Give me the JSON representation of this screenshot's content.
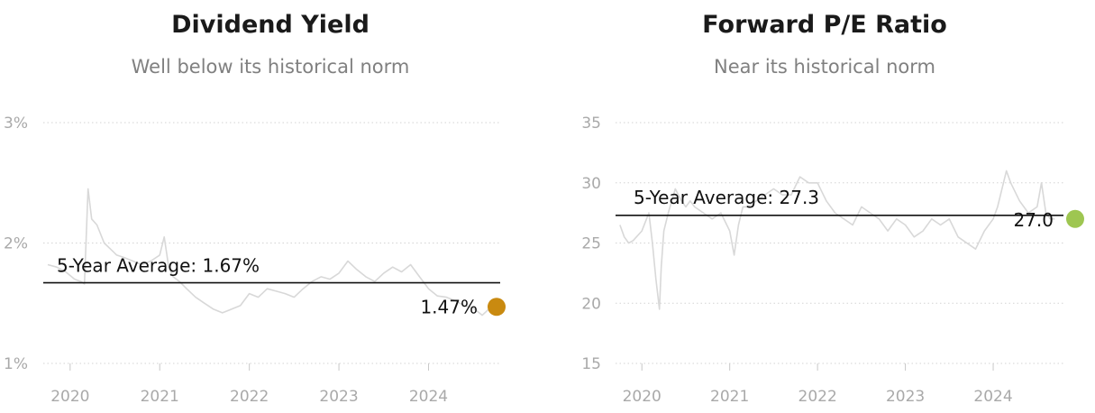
{
  "chart_data": [
    {
      "type": "line",
      "title": "Dividend Yield",
      "subtitle": "Well below its historical norm",
      "ylim": [
        1,
        3
      ],
      "y_ticks": [
        1,
        2,
        3
      ],
      "y_tick_labels": [
        "1%",
        "2%",
        "3%"
      ],
      "x_ticks": [
        2020,
        2021,
        2022,
        2023,
        2024
      ],
      "x_tick_labels": [
        "2020",
        "2021",
        "2022",
        "2023",
        "2024"
      ],
      "xlim": [
        2019.7,
        2024.8
      ],
      "grid": true,
      "average": {
        "value": 1.67,
        "label": "5-Year Average: 1.67%"
      },
      "current": {
        "value": 1.47,
        "label": "1.47%",
        "color": "#c98a10"
      },
      "line_color": "#d8d8d8",
      "series": [
        {
          "x": [
            2019.75,
            2019.85,
            2019.95,
            2020.05,
            2020.12,
            2020.16,
            2020.2,
            2020.24,
            2020.3,
            2020.38,
            2020.45,
            2020.52,
            2020.6,
            2020.7,
            2020.8,
            2020.9,
            2021.0,
            2021.05,
            2021.1,
            2021.15,
            2021.22,
            2021.3,
            2021.4,
            2021.5,
            2021.6,
            2021.7,
            2021.8,
            2021.9,
            2022.0,
            2022.1,
            2022.2,
            2022.3,
            2022.4,
            2022.5,
            2022.6,
            2022.7,
            2022.8,
            2022.9,
            2023.0,
            2023.1,
            2023.2,
            2023.3,
            2023.4,
            2023.5,
            2023.6,
            2023.7,
            2023.8,
            2023.9,
            2024.0,
            2024.1,
            2024.2,
            2024.3,
            2024.4,
            2024.5,
            2024.6,
            2024.7
          ],
          "y": [
            1.82,
            1.8,
            1.76,
            1.7,
            1.68,
            1.66,
            2.45,
            2.2,
            2.15,
            2.0,
            1.95,
            1.9,
            1.88,
            1.85,
            1.82,
            1.85,
            1.9,
            2.05,
            1.8,
            1.72,
            1.68,
            1.62,
            1.55,
            1.5,
            1.45,
            1.42,
            1.45,
            1.48,
            1.58,
            1.55,
            1.62,
            1.6,
            1.58,
            1.55,
            1.62,
            1.68,
            1.72,
            1.7,
            1.75,
            1.85,
            1.78,
            1.72,
            1.68,
            1.75,
            1.8,
            1.76,
            1.82,
            1.72,
            1.62,
            1.56,
            1.55,
            1.52,
            1.48,
            1.46,
            1.4,
            1.47
          ]
        }
      ]
    },
    {
      "type": "line",
      "title": "Forward P/E Ratio",
      "subtitle": "Near its historical norm",
      "ylim": [
        15,
        35
      ],
      "y_ticks": [
        15,
        20,
        25,
        30,
        35
      ],
      "y_tick_labels": [
        "15",
        "20",
        "25",
        "30",
        "35"
      ],
      "x_ticks": [
        2020,
        2021,
        2022,
        2023,
        2024
      ],
      "x_tick_labels": [
        "2020",
        "2021",
        "2022",
        "2023",
        "2024"
      ],
      "xlim": [
        2019.7,
        2024.8
      ],
      "grid": true,
      "average": {
        "value": 27.3,
        "label": "5-Year Average: 27.3"
      },
      "current": {
        "value": 27.0,
        "label": "27.0",
        "color": "#9ec651"
      },
      "line_color": "#d8d8d8",
      "series": [
        {
          "x": [
            2019.75,
            2019.8,
            2019.85,
            2019.9,
            2020.0,
            2020.08,
            2020.12,
            2020.16,
            2020.2,
            2020.22,
            2020.25,
            2020.3,
            2020.38,
            2020.45,
            2020.5,
            2020.55,
            2020.6,
            2020.7,
            2020.8,
            2020.9,
            2021.0,
            2021.05,
            2021.1,
            2021.15,
            2021.2,
            2021.3,
            2021.4,
            2021.5,
            2021.6,
            2021.7,
            2021.8,
            2021.9,
            2022.0,
            2022.1,
            2022.2,
            2022.3,
            2022.4,
            2022.5,
            2022.6,
            2022.7,
            2022.8,
            2022.9,
            2023.0,
            2023.1,
            2023.2,
            2023.3,
            2023.4,
            2023.5,
            2023.6,
            2023.7,
            2023.8,
            2023.9,
            2024.0,
            2024.05,
            2024.1,
            2024.15,
            2024.2,
            2024.3,
            2024.4,
            2024.5,
            2024.55,
            2024.6,
            2024.65,
            2024.7
          ],
          "y": [
            26.5,
            25.5,
            25.0,
            25.2,
            26.0,
            27.5,
            25.0,
            22.0,
            19.5,
            23.0,
            26.0,
            27.5,
            29.5,
            28.5,
            28.0,
            28.5,
            28.0,
            27.5,
            27.0,
            27.5,
            26.0,
            24.0,
            26.5,
            28.0,
            28.0,
            28.5,
            29.0,
            29.5,
            29.0,
            29.0,
            30.5,
            30.0,
            30.0,
            28.5,
            27.5,
            27.0,
            26.5,
            28.0,
            27.5,
            27.0,
            26.0,
            27.0,
            26.5,
            25.5,
            26.0,
            27.0,
            26.5,
            27.0,
            25.5,
            25.0,
            24.5,
            26.0,
            27.0,
            28.0,
            29.5,
            31.0,
            30.0,
            28.5,
            27.5,
            28.0,
            30.0,
            27.5,
            27.0,
            27.0
          ]
        }
      ]
    }
  ]
}
